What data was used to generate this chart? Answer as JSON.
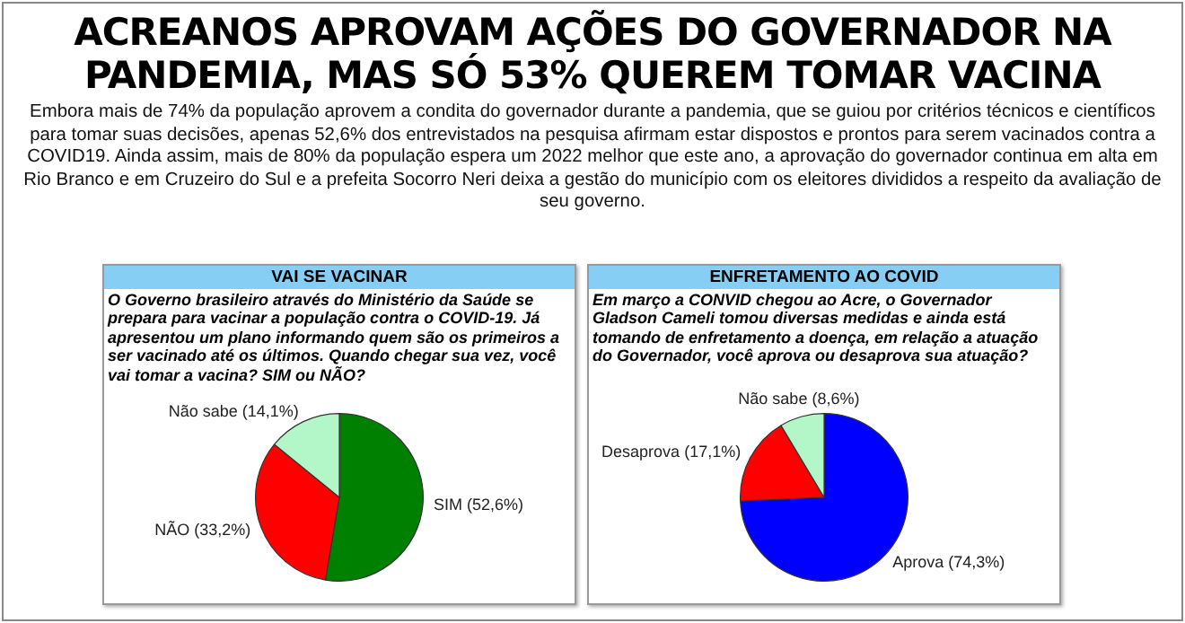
{
  "chart_data": [
    {
      "type": "other",
      "title": "ACREANOS APROVAM AÇÕES DO GOVERNADOR NA PANDEMIA, MAS SÓ 53% QUEREM TOMAR VACINA",
      "annotations": [
        "Embora mais de 74% da população aprovem a condita do governador durante a pandemia, que se guiou por critérios técnicos e científicos para tomar suas decisões, apenas 52,6% dos entrevistados na pesquisa afirmam estar dispostos e prontos para serem vacinados contra a COVID19. Ainda assim, mais de 80% da população espera um 2022 melhor que este ano, a aprovação do governador continua em alta em Rio Branco e em Cruzeiro do Sul e a prefeita Socorro Neri deixa a gestão do município com os eleitores divididos a respeito da avaliação de seu governo."
      ]
    },
    {
      "type": "pie",
      "title": "VAI SE VACINAR",
      "subtitle": "O Governo brasileiro através do Ministério da Saúde se prepara para vacinar a população contra o COVID-19. Já apresentou um plano informando quem são os primeiros a ser vacinado até os últimos. Quando chegar sua vez, você vai tomar a vacina? SIM ou NÃO?",
      "categories": [
        "SIM",
        "NÃO",
        "Não sabe"
      ],
      "values": [
        52.6,
        33.2,
        14.1
      ],
      "colors": [
        "#008000",
        "#ff0000",
        "#b3f7c8"
      ],
      "value_labels": [
        "(52,6%)",
        "(33,2%)",
        "(14,1%)"
      ]
    },
    {
      "type": "pie",
      "title": "ENFRETAMENTO AO COVID",
      "subtitle": "Em março a CONVID chegou ao Acre, o Governador Gladson Cameli tomou diversas medidas e ainda está tomando de enfretamento a doença, em relação a atuação do Governador, você aprova ou desaprova sua atuação?",
      "categories": [
        "Aprova",
        "Desaprova",
        "Não sabe"
      ],
      "values": [
        74.3,
        17.1,
        8.6
      ],
      "colors": [
        "#0000ff",
        "#ff0000",
        "#b3f7c8"
      ],
      "value_labels": [
        "(74,3%)",
        "(17,1%)",
        "(8,6%)"
      ]
    }
  ]
}
